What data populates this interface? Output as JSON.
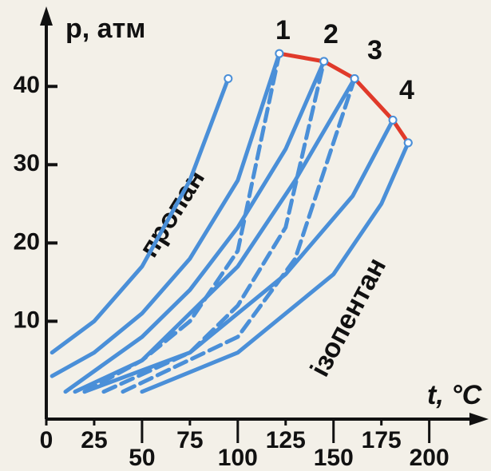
{
  "chart_data": {
    "type": "line",
    "y_label": "р, атм",
    "x_label": "t, °C",
    "annotations": [
      "пропан",
      "ізопентан",
      "1",
      "2",
      "3",
      "4"
    ],
    "xlim": [
      0,
      226
    ],
    "ylim": [
      -2.5,
      49
    ],
    "xticks": [
      0,
      25,
      50,
      75,
      100,
      125,
      150,
      175,
      200
    ],
    "yticks": [
      10,
      20,
      30,
      40
    ],
    "series": [
      {
        "color": "#4a8fd8",
        "dashed": false,
        "x": [
          3,
          25,
          50,
          75,
          95
        ],
        "values": [
          6,
          10,
          17,
          28,
          41
        ]
      },
      {
        "color": "#4a8fd8",
        "dashed": false,
        "x": [
          3,
          25,
          50,
          75,
          100,
          121.7
        ],
        "values": [
          3,
          6,
          11,
          18,
          28,
          44.2
        ]
      },
      {
        "color": "#4a8fd8",
        "dashed": true,
        "x": [
          20,
          50,
          75,
          100,
          121.7
        ],
        "values": [
          1,
          5,
          10,
          19,
          44.2
        ]
      },
      {
        "color": "#4a8fd8",
        "dashed": false,
        "x": [
          10,
          50,
          75,
          100,
          125,
          145
        ],
        "values": [
          1,
          8,
          14,
          22,
          32,
          43.2
        ]
      },
      {
        "color": "#4a8fd8",
        "dashed": true,
        "x": [
          30,
          75,
          100,
          125,
          145
        ],
        "values": [
          1,
          6,
          12,
          22,
          43.2
        ]
      },
      {
        "color": "#4a8fd8",
        "dashed": false,
        "x": [
          15,
          50,
          100,
          130,
          161
        ],
        "values": [
          1,
          5,
          17,
          28,
          41
        ]
      },
      {
        "color": "#4a8fd8",
        "dashed": true,
        "x": [
          40,
          100,
          130,
          161
        ],
        "values": [
          1,
          8,
          18,
          41
        ]
      },
      {
        "color": "#4a8fd8",
        "dashed": false,
        "x": [
          20,
          75,
          125,
          160,
          181
        ],
        "values": [
          1,
          6,
          16,
          26,
          35.7
        ]
      },
      {
        "color": "#4a8fd8",
        "dashed": false,
        "x": [
          50,
          100,
          150,
          175,
          189
        ],
        "values": [
          1,
          6,
          16,
          25,
          32.8
        ]
      },
      {
        "color": "#e03a2a",
        "dashed": false,
        "x": [
          121.7,
          145,
          161,
          181,
          189
        ],
        "values": [
          44.2,
          43.2,
          41,
          35.7,
          32.8
        ]
      }
    ]
  }
}
